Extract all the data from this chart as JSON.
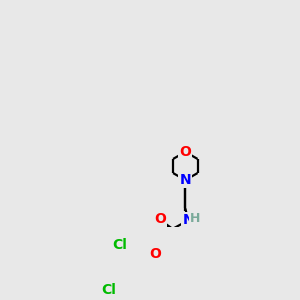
{
  "background_color": "#e8e8e8",
  "atom_colors": {
    "O": "#ff0000",
    "N": "#0000ff",
    "Cl": "#00bb00",
    "C": "#000000",
    "H": "#7aaa9a"
  },
  "bond_color": "#000000",
  "bond_lw": 1.6,
  "font_size_atom": 10,
  "font_size_h": 9
}
